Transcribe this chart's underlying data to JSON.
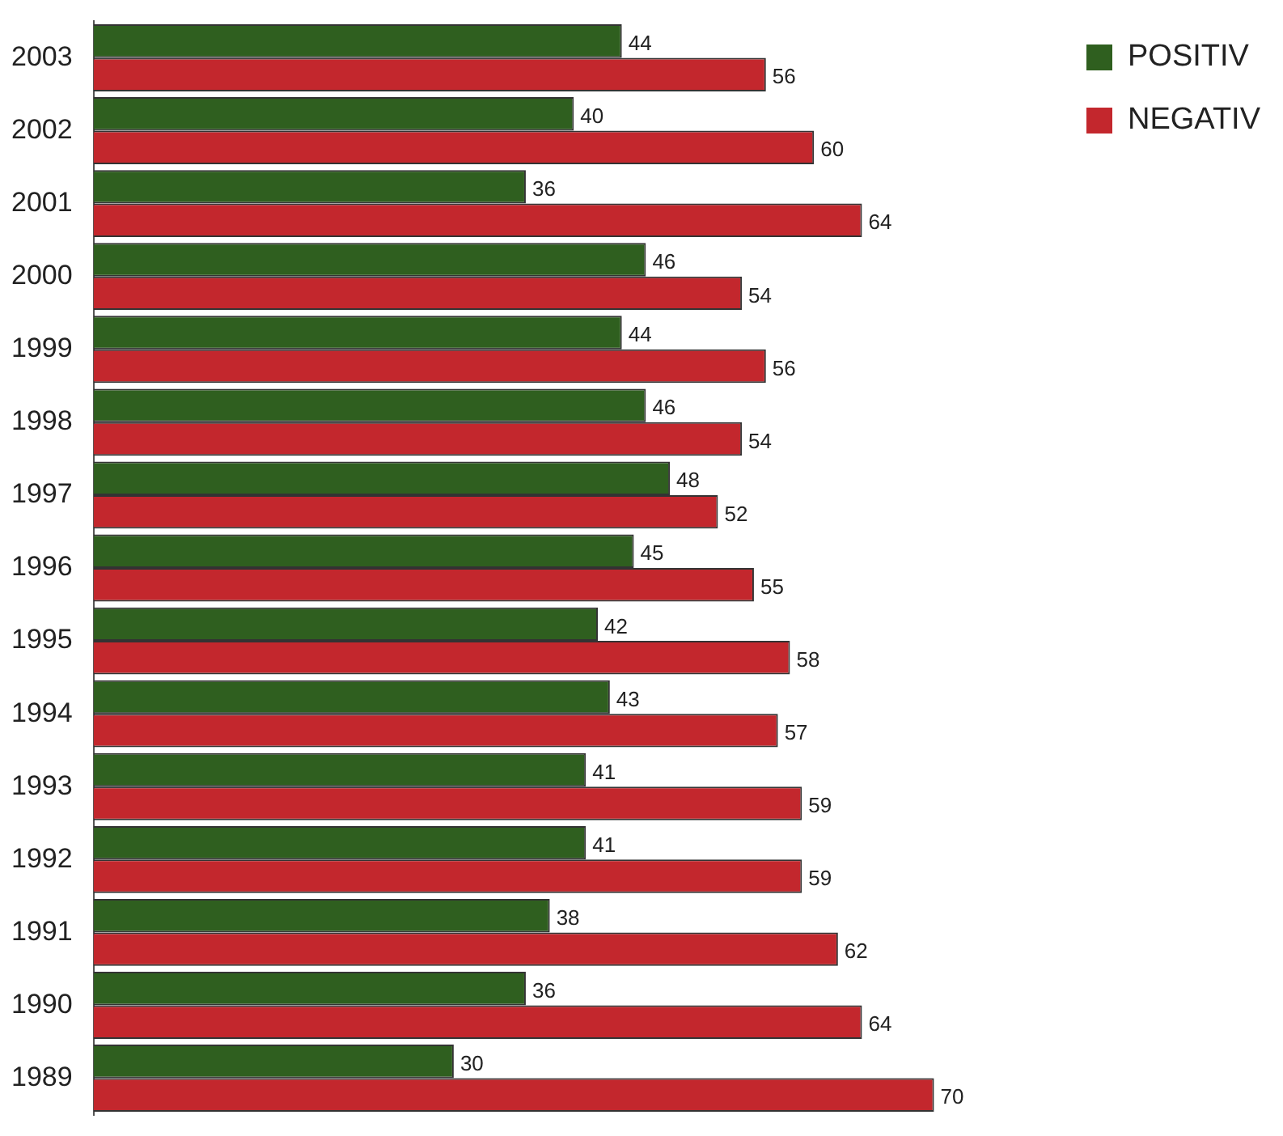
{
  "chart_data": {
    "type": "bar",
    "orientation": "horizontal",
    "categories": [
      "2003",
      "2002",
      "2001",
      "2000",
      "1999",
      "1998",
      "1997",
      "1996",
      "1995",
      "1994",
      "1993",
      "1992",
      "1991",
      "1990",
      "1989"
    ],
    "series": [
      {
        "name": "POSITIV",
        "color": "#2f5f1f",
        "values": [
          44,
          40,
          36,
          46,
          44,
          46,
          48,
          45,
          42,
          43,
          41,
          41,
          38,
          36,
          30
        ]
      },
      {
        "name": "NEGATIV",
        "color": "#c3272d",
        "values": [
          56,
          60,
          64,
          54,
          56,
          54,
          52,
          55,
          58,
          57,
          59,
          59,
          62,
          64,
          70
        ]
      }
    ],
    "tick_labels": "y",
    "data_labels": true,
    "grid": false,
    "legend": "right"
  }
}
